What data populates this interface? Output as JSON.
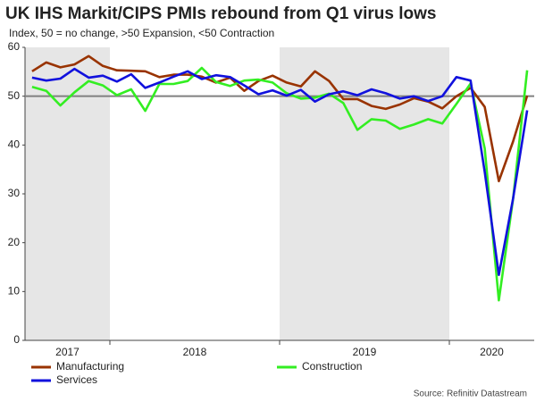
{
  "chart_data": {
    "type": "line",
    "title": "UK IHS Markit/CIPS PMIs rebound from Q1 virus lows",
    "subtitle": "Index, 50 = no change, >50 Expansion,  <50 Contraction",
    "source": "Source: Refinitiv Datastream",
    "year_groups": [
      {
        "label": "2017",
        "months": 6,
        "shaded": true
      },
      {
        "label": "2018",
        "months": 12,
        "shaded": false
      },
      {
        "label": "2019",
        "months": 12,
        "shaded": true
      },
      {
        "label": "2020",
        "months": 6,
        "shaded": false
      }
    ],
    "ylim": [
      0,
      60
    ],
    "yticks": [
      0,
      10,
      20,
      30,
      40,
      50,
      60
    ],
    "reference_line": {
      "value": 50,
      "color": "#808080"
    },
    "series": [
      {
        "name": "Manufacturing",
        "color": "#993300",
        "values": [
          55.1,
          56.9,
          55.9,
          56.5,
          58.2,
          56.2,
          55.3,
          55.2,
          55.1,
          53.9,
          54.4,
          54.4,
          54.0,
          52.8,
          53.8,
          51.1,
          53.1,
          54.2,
          52.8,
          52.0,
          55.1,
          53.1,
          49.4,
          49.4,
          48.0,
          47.4,
          48.3,
          49.6,
          48.9,
          47.5,
          50.0,
          51.7,
          47.8,
          32.6,
          40.7,
          50.1
        ]
      },
      {
        "name": "Construction",
        "color": "#33ee22",
        "values": [
          51.9,
          51.1,
          48.1,
          50.8,
          53.1,
          52.2,
          50.2,
          51.4,
          47.0,
          52.5,
          52.5,
          53.1,
          55.8,
          52.9,
          52.1,
          53.2,
          53.4,
          52.8,
          50.6,
          49.5,
          49.7,
          50.5,
          48.6,
          43.1,
          45.3,
          45.0,
          43.3,
          44.2,
          45.3,
          44.4,
          48.4,
          52.6,
          39.3,
          8.2,
          28.9,
          55.3
        ]
      },
      {
        "name": "Services",
        "color": "#1111dd",
        "values": [
          53.8,
          53.2,
          53.6,
          55.6,
          53.8,
          54.2,
          53.0,
          54.5,
          51.7,
          52.8,
          54.0,
          55.1,
          53.5,
          54.3,
          53.9,
          52.2,
          50.4,
          51.2,
          50.1,
          51.3,
          48.9,
          50.4,
          51.0,
          50.2,
          51.4,
          50.6,
          49.5,
          50.0,
          49.0,
          50.0,
          53.9,
          53.2,
          34.5,
          13.4,
          29.0,
          47.1
        ]
      }
    ]
  }
}
